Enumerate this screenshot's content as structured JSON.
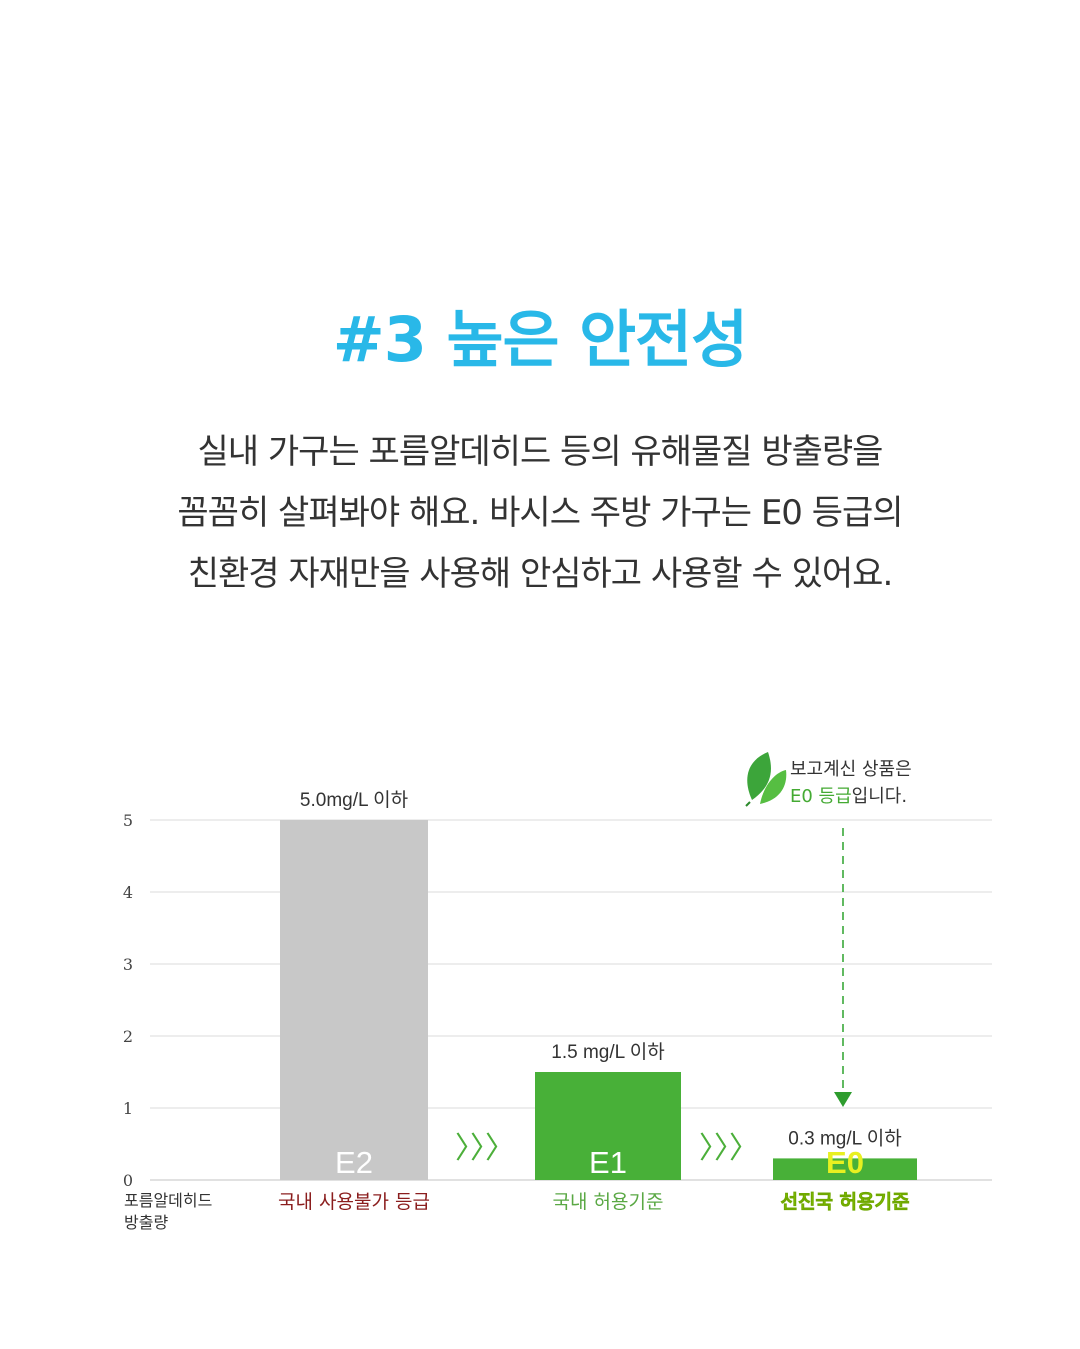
{
  "title": "#3 높은 안전성",
  "description": [
    "실내 가구는 포름알데히드 등의 유해물질 방출량을",
    "꼼꼼히 살펴봐야 해요. 바시스 주방 가구는 E0 등급의",
    "친환경 자재만을 사용해 안심하고 사용할 수 있어요."
  ],
  "note": {
    "line1": "보고계신 상품은",
    "line2_highlight": "E0 등급",
    "line2_rest": "입니다.",
    "icon": "leaf-icon"
  },
  "colors": {
    "title": "#29b8e8",
    "e2_bar": "#c8c8c8",
    "e1_bar": "#48b038",
    "e0_bar": "#48b038",
    "e2_category": "#8b1e1e",
    "e1_category": "#5aa844",
    "e0_category": "#9be000",
    "e0_grade": "#e8f020"
  },
  "chart_data": {
    "type": "bar",
    "ylabel": "포름알데히드 방출량",
    "ylim": [
      0,
      5
    ],
    "yticks": [
      0,
      1,
      2,
      3,
      4,
      5
    ],
    "grid": true,
    "bars": [
      {
        "grade": "E2",
        "value": 5.0,
        "value_label": "5.0mg/L 이하",
        "category": "국내 사용불가 등급"
      },
      {
        "grade": "E1",
        "value": 1.5,
        "value_label": "1.5 mg/L 이하",
        "category": "국내 허용기준"
      },
      {
        "grade": "E0",
        "value": 0.3,
        "value_label": "0.3 mg/L 이하",
        "category": "선진국 허용기준"
      }
    ],
    "arrow_glyph": "〉〉〉"
  }
}
